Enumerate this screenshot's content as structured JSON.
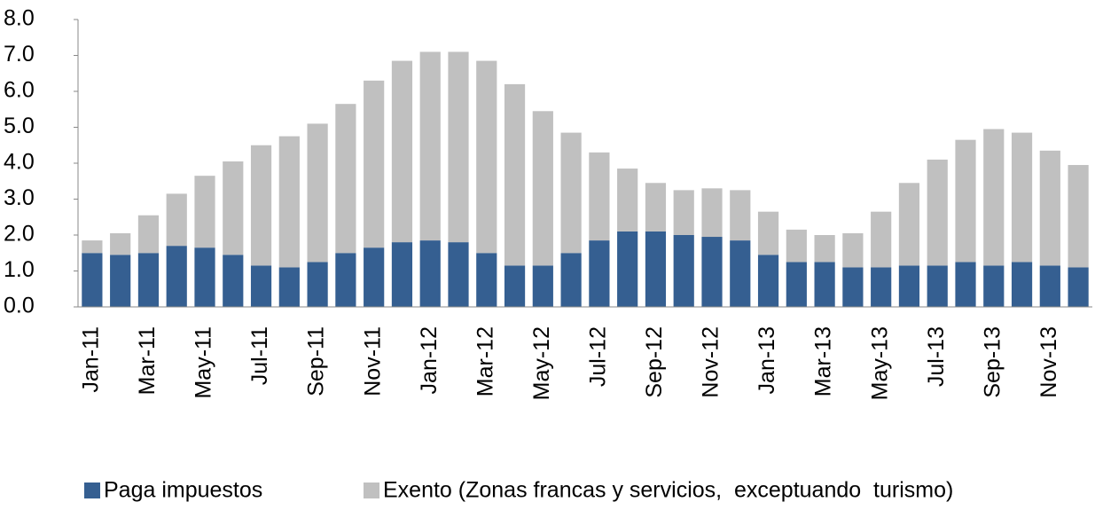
{
  "chart_data": {
    "type": "stacked_bar",
    "categories": [
      "Jan-11",
      null,
      "Mar-11",
      null,
      "May-11",
      null,
      "Jul-11",
      null,
      "Sep-11",
      null,
      "Nov-11",
      null,
      "Jan-12",
      null,
      "Mar-12",
      null,
      "May-12",
      null,
      "Jul-12",
      null,
      "Sep-12",
      null,
      "Nov-12",
      null,
      "Jan-13",
      null,
      "Mar-13",
      null,
      "May-13",
      null,
      "Jul-13",
      null,
      "Sep-13",
      null,
      "Nov-13",
      null
    ],
    "series": [
      {
        "name": "Paga impuestos",
        "color": "#355f91",
        "values": [
          1.5,
          1.45,
          1.5,
          1.7,
          1.65,
          1.45,
          1.15,
          1.1,
          1.25,
          1.5,
          1.65,
          1.8,
          1.85,
          1.8,
          1.5,
          1.15,
          1.15,
          1.5,
          1.85,
          2.1,
          2.1,
          2.0,
          1.95,
          1.85,
          1.45,
          1.25,
          1.25,
          1.1,
          1.1,
          1.15,
          1.15,
          1.25,
          1.15,
          1.25,
          1.15,
          1.1
        ]
      },
      {
        "name": "Exento (Zonas francas y servicios,  exceptuando  turismo)",
        "color": "#c0c0c0",
        "values": [
          0.35,
          0.6,
          1.05,
          1.45,
          2.0,
          2.6,
          3.35,
          3.65,
          3.85,
          4.15,
          4.65,
          5.05,
          5.25,
          5.3,
          5.35,
          5.05,
          4.3,
          3.35,
          2.45,
          1.75,
          1.35,
          1.25,
          1.35,
          1.4,
          1.2,
          0.9,
          0.75,
          0.95,
          1.55,
          2.3,
          2.95,
          3.4,
          3.8,
          3.6,
          3.2,
          2.85
        ]
      }
    ],
    "ylim": [
      0,
      8
    ],
    "yticks": [
      {
        "value": 0,
        "label": "0.0"
      },
      {
        "value": 1,
        "label": "1.0"
      },
      {
        "value": 2,
        "label": "2.0"
      },
      {
        "value": 3,
        "label": "3.0"
      },
      {
        "value": 4,
        "label": "4.0"
      },
      {
        "value": 5,
        "label": "5.0"
      },
      {
        "value": 6,
        "label": "6.0"
      },
      {
        "value": 7,
        "label": "7.0"
      },
      {
        "value": 8,
        "label": "8.0"
      }
    ],
    "legend": "bottom"
  }
}
